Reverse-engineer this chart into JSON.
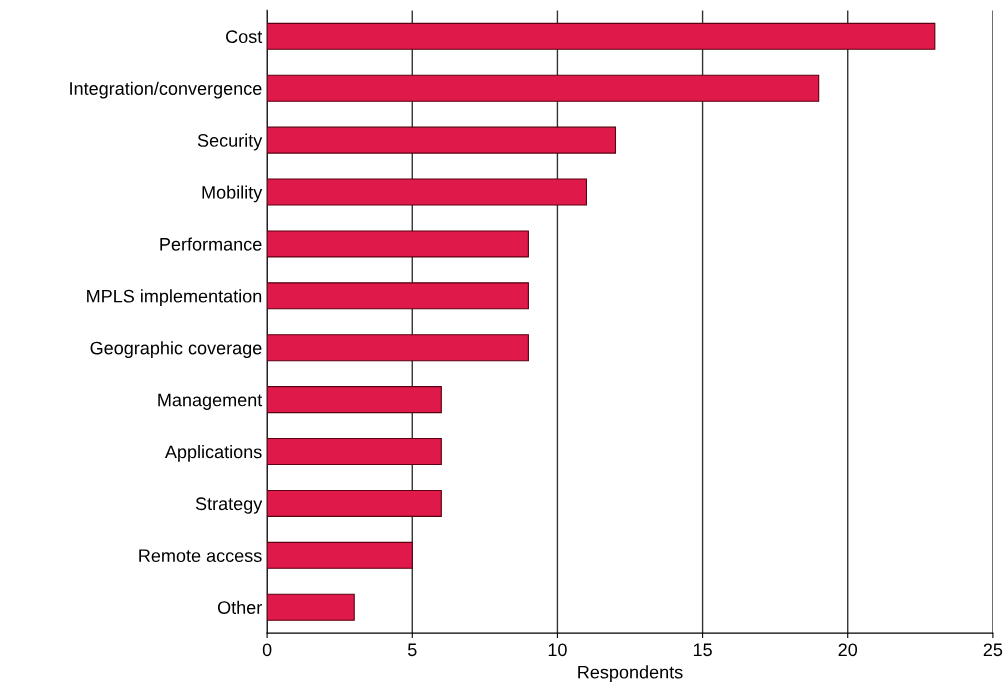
{
  "chart_data": {
    "type": "bar",
    "orientation": "horizontal",
    "xlabel": "Respondents",
    "categories": [
      "Cost",
      "Integration/convergence",
      "Security",
      "Mobility",
      "Performance",
      "MPLS implementation",
      "Geographic coverage",
      "Management",
      "Applications",
      "Strategy",
      "Remote access",
      "Other"
    ],
    "values": [
      23,
      19,
      12,
      11,
      9,
      9,
      9,
      6,
      6,
      6,
      5,
      3
    ],
    "color": "#e0194b",
    "xlim": [
      0,
      25
    ],
    "xticks": [
      0,
      5,
      10,
      15,
      20,
      25
    ],
    "grid": "x",
    "legend": false
  }
}
